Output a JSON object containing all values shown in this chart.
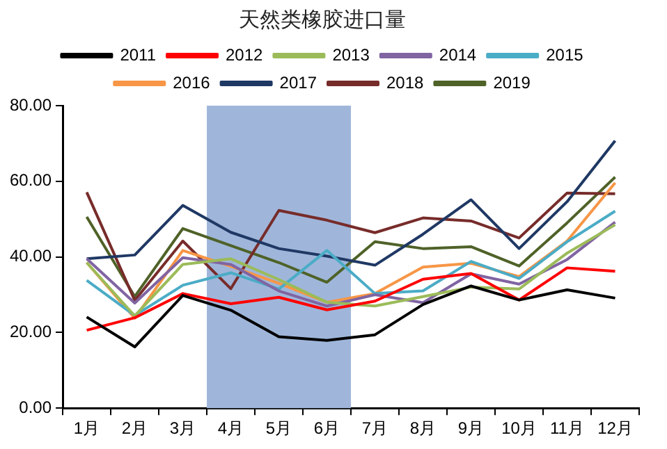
{
  "chart_data": {
    "type": "line",
    "title": "天然类橡胶进口量",
    "categories": [
      "1月",
      "2月",
      "3月",
      "4月",
      "5月",
      "6月",
      "7月",
      "8月",
      "9月",
      "10月",
      "11月",
      "12月"
    ],
    "series": [
      {
        "name": "2011",
        "color": "#000000",
        "values": [
          24.1,
          16.2,
          29.8,
          25.9,
          18.9,
          17.9,
          19.4,
          27.4,
          32.3,
          28.6,
          31.3,
          29.1
        ]
      },
      {
        "name": "2012",
        "color": "#ff0000",
        "values": [
          20.6,
          23.9,
          30.3,
          27.6,
          29.3,
          26,
          28.3,
          34.1,
          35.6,
          28.6,
          37.1,
          36.2
        ]
      },
      {
        "name": "2013",
        "color": "#9bbb59",
        "values": [
          38.5,
          24.4,
          38,
          39.5,
          34,
          28,
          27,
          29.5,
          32,
          31.5,
          41,
          48.5
        ]
      },
      {
        "name": "2014",
        "color": "#8064a2",
        "values": [
          39.5,
          27.8,
          39.8,
          38,
          31,
          27,
          30,
          27.9,
          35.5,
          32.8,
          39.3,
          49.2
        ]
      },
      {
        "name": "2015",
        "color": "#4bacc6",
        "values": [
          33.8,
          24.5,
          32.5,
          35.8,
          31.5,
          41.7,
          30.3,
          31,
          38.8,
          34.3,
          44,
          52.1
        ]
      },
      {
        "name": "2016",
        "color": "#f79646",
        "values": [
          38.5,
          23.8,
          41.7,
          37.5,
          33,
          28,
          30.3,
          37.3,
          38.3,
          34.8,
          44.2,
          59.6
        ]
      },
      {
        "name": "2017",
        "color": "#1f3864",
        "values": [
          39.5,
          40.5,
          53.6,
          46.5,
          42.2,
          40.2,
          37.8,
          46,
          55.1,
          42.2,
          54.6,
          70.7
        ]
      },
      {
        "name": "2018",
        "color": "#772c2a",
        "values": [
          57.1,
          28.5,
          44.2,
          31.6,
          52.3,
          49.7,
          46.4,
          50.3,
          49.5,
          45,
          56.9,
          56.7
        ]
      },
      {
        "name": "2019",
        "color": "#4f6228",
        "values": [
          50.6,
          29.5,
          47.5,
          43,
          38.5,
          33.3,
          44,
          42.2,
          42.7,
          37.6,
          49,
          61.1
        ]
      }
    ],
    "ylim": [
      0,
      80
    ],
    "yticks": [
      {
        "value": 0,
        "label": "0.00"
      },
      {
        "value": 20,
        "label": "20.00"
      },
      {
        "value": 40,
        "label": "40.00"
      },
      {
        "value": 60,
        "label": "60.00"
      },
      {
        "value": 80,
        "label": "80.00"
      }
    ],
    "bands": [
      {
        "axis": "x",
        "from": "4月",
        "to": "6月",
        "color": "#9fb6da"
      }
    ],
    "grid": false,
    "legend": "top",
    "marker": "none",
    "line_style": "solid"
  }
}
